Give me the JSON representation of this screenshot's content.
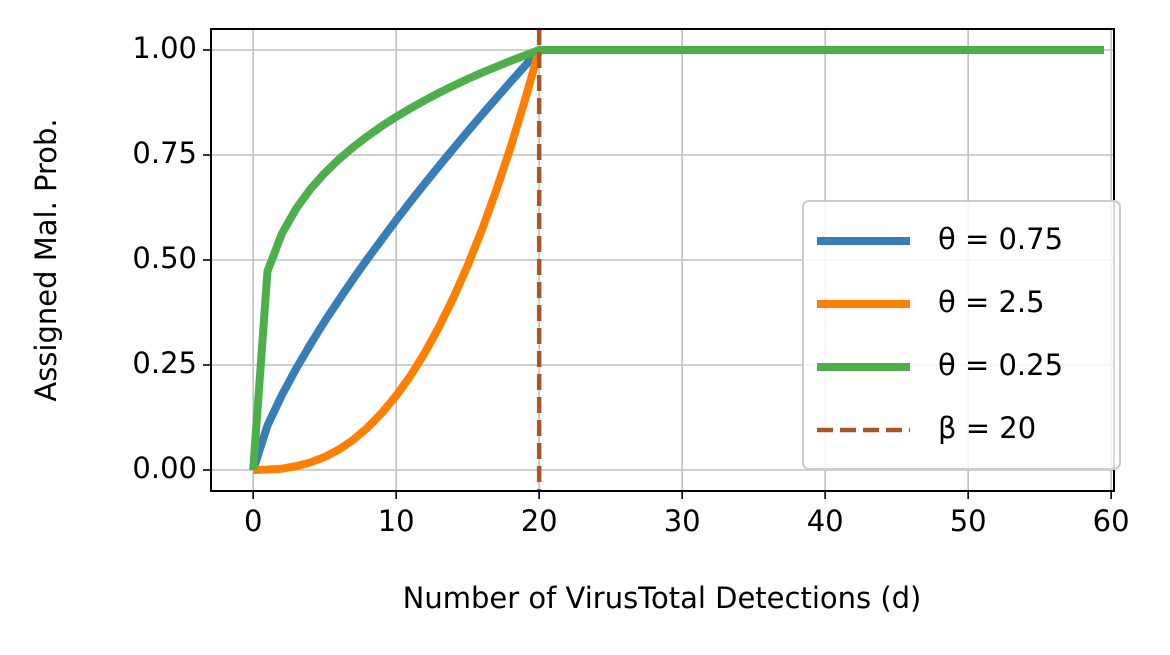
{
  "chart_data": {
    "type": "line",
    "xlabel": "Number of VirusTotal Detections (d)",
    "ylabel": "Assigned Mal. Prob.",
    "x": [
      0,
      1,
      2,
      3,
      4,
      5,
      6,
      7,
      8,
      9,
      10,
      11,
      12,
      13,
      14,
      15,
      16,
      17,
      18,
      19,
      20,
      59.5
    ],
    "series": [
      {
        "name": "θ = 0.75",
        "color": "#377eb8",
        "values": [
          0,
          0.106,
          0.178,
          0.241,
          0.299,
          0.354,
          0.405,
          0.455,
          0.503,
          0.549,
          0.595,
          0.639,
          0.682,
          0.724,
          0.765,
          0.806,
          0.846,
          0.885,
          0.924,
          0.962,
          1,
          1
        ]
      },
      {
        "name": "θ = 2.5",
        "color": "#ff7f00",
        "values": [
          0,
          0.001,
          0.003,
          0.009,
          0.018,
          0.031,
          0.049,
          0.072,
          0.101,
          0.136,
          0.177,
          0.224,
          0.279,
          0.341,
          0.41,
          0.487,
          0.572,
          0.666,
          0.768,
          0.88,
          1,
          1
        ]
      },
      {
        "name": "θ = 0.25",
        "color": "#4daf4a",
        "values": [
          0,
          0.473,
          0.562,
          0.622,
          0.669,
          0.707,
          0.74,
          0.769,
          0.795,
          0.819,
          0.841,
          0.861,
          0.88,
          0.898,
          0.915,
          0.931,
          0.946,
          0.96,
          0.974,
          0.987,
          1,
          1
        ]
      }
    ],
    "vline": {
      "name": "β = 20",
      "x": 20,
      "color": "#a65628"
    },
    "xlim": [
      -2.95,
      60.2
    ],
    "xticks": [
      0,
      10,
      20,
      30,
      40,
      50,
      60
    ],
    "ylim": [
      -0.05,
      1.05
    ],
    "yticks": [
      {
        "value": 0,
        "label": "0.00"
      },
      {
        "value": 0.25,
        "label": "0.25"
      },
      {
        "value": 0.5,
        "label": "0.50"
      },
      {
        "value": 0.75,
        "label": "0.75"
      },
      {
        "value": 1,
        "label": "1.00"
      }
    ],
    "grid": true,
    "legend": "lower right"
  }
}
